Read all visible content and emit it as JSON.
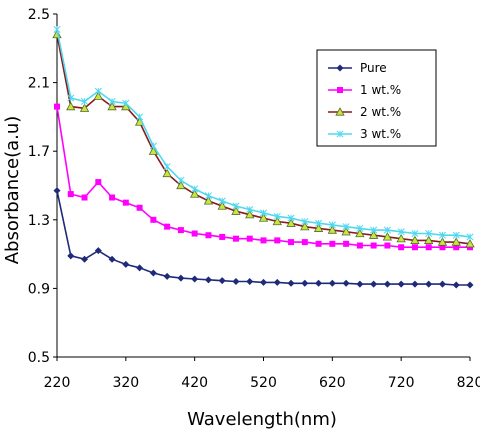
{
  "chart_data": {
    "type": "line",
    "title": "",
    "xlabel": "Wavelength(nm)",
    "ylabel": "Absorbance(a.u)",
    "xlim": [
      220,
      820
    ],
    "ylim": [
      0.5,
      2.5
    ],
    "xticks": [
      "220",
      "320",
      "420",
      "520",
      "620",
      "720",
      "820"
    ],
    "yticks": [
      "0.5",
      "0.9",
      "1.3",
      "1.7",
      "2.1",
      "2.5"
    ],
    "grid": false,
    "legend_position": "top-right",
    "series": [
      {
        "name": "Pure",
        "color": "#1f2a7a",
        "marker": "diamond",
        "x": [
          220,
          240,
          260,
          280,
          300,
          320,
          340,
          360,
          380,
          400,
          420,
          440,
          460,
          480,
          500,
          520,
          540,
          560,
          580,
          600,
          620,
          640,
          660,
          680,
          700,
          720,
          740,
          760,
          780,
          800,
          820
        ],
        "y": [
          1.47,
          1.09,
          1.07,
          1.12,
          1.07,
          1.04,
          1.02,
          0.99,
          0.97,
          0.96,
          0.955,
          0.95,
          0.945,
          0.94,
          0.94,
          0.935,
          0.935,
          0.93,
          0.93,
          0.93,
          0.93,
          0.93,
          0.925,
          0.925,
          0.925,
          0.925,
          0.925,
          0.925,
          0.925,
          0.92,
          0.92
        ]
      },
      {
        "name": "1 wt.%",
        "color": "#ff00ff",
        "marker": "square",
        "x": [
          220,
          240,
          260,
          280,
          300,
          320,
          340,
          360,
          380,
          400,
          420,
          440,
          460,
          480,
          500,
          520,
          540,
          560,
          580,
          600,
          620,
          640,
          660,
          680,
          700,
          720,
          740,
          760,
          780,
          800,
          820
        ],
        "y": [
          1.96,
          1.45,
          1.43,
          1.52,
          1.43,
          1.4,
          1.37,
          1.3,
          1.26,
          1.24,
          1.22,
          1.21,
          1.2,
          1.19,
          1.19,
          1.18,
          1.18,
          1.17,
          1.17,
          1.16,
          1.16,
          1.16,
          1.15,
          1.15,
          1.15,
          1.14,
          1.14,
          1.14,
          1.14,
          1.14,
          1.14
        ]
      },
      {
        "name": "2 wt.%",
        "color": "#8b1a1a",
        "marker": "triangle",
        "x": [
          220,
          240,
          260,
          280,
          300,
          320,
          340,
          360,
          380,
          400,
          420,
          440,
          460,
          480,
          500,
          520,
          540,
          560,
          580,
          600,
          620,
          640,
          660,
          680,
          700,
          720,
          740,
          760,
          780,
          800,
          820
        ],
        "y": [
          2.38,
          1.96,
          1.95,
          2.02,
          1.96,
          1.96,
          1.87,
          1.7,
          1.57,
          1.5,
          1.45,
          1.41,
          1.38,
          1.35,
          1.33,
          1.31,
          1.29,
          1.28,
          1.26,
          1.25,
          1.24,
          1.23,
          1.22,
          1.21,
          1.2,
          1.19,
          1.18,
          1.18,
          1.17,
          1.17,
          1.16
        ]
      },
      {
        "name": "3 wt.%",
        "color": "#4fd8f0",
        "marker": "star",
        "x": [
          220,
          240,
          260,
          280,
          300,
          320,
          340,
          360,
          380,
          400,
          420,
          440,
          460,
          480,
          500,
          520,
          540,
          560,
          580,
          600,
          620,
          640,
          660,
          680,
          700,
          720,
          740,
          760,
          780,
          800,
          820
        ],
        "y": [
          2.41,
          2.01,
          1.99,
          2.05,
          1.99,
          1.98,
          1.9,
          1.73,
          1.61,
          1.53,
          1.48,
          1.44,
          1.41,
          1.38,
          1.36,
          1.34,
          1.32,
          1.31,
          1.29,
          1.28,
          1.27,
          1.26,
          1.25,
          1.24,
          1.24,
          1.23,
          1.22,
          1.22,
          1.21,
          1.21,
          1.2
        ]
      }
    ]
  }
}
